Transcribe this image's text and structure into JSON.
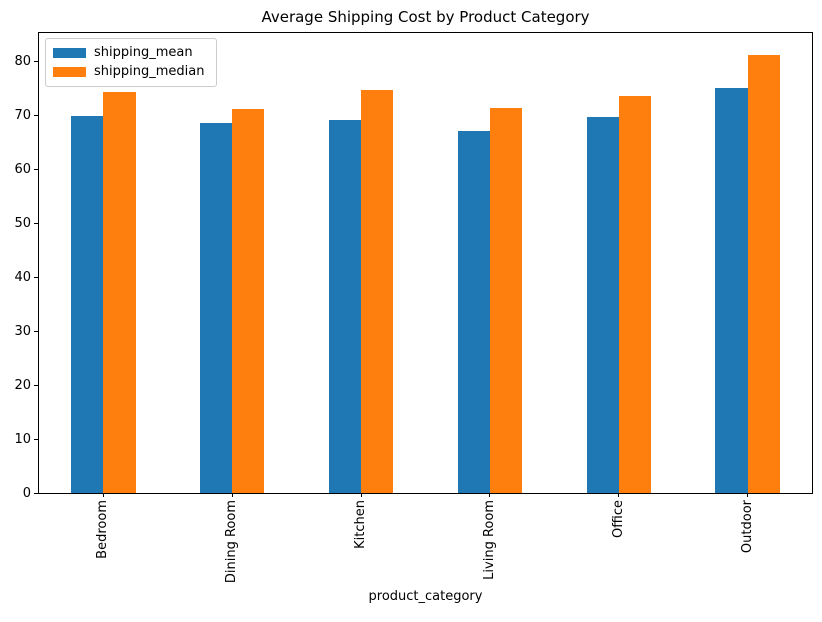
{
  "figure": {
    "background": "#ffffff",
    "spine_color": "#000000"
  },
  "chart_data": {
    "type": "bar",
    "title": "Average Shipping Cost by Product Category",
    "xlabel": "product_category",
    "ylabel": "",
    "categories": [
      "Bedroom",
      "Dining Room",
      "Kitchen",
      "Living Room",
      "Office",
      "Outdoor"
    ],
    "series": [
      {
        "name": "shipping_mean",
        "color": "#1f77b4",
        "values": [
          69.8,
          68.5,
          69.0,
          67.0,
          69.6,
          75.1
        ]
      },
      {
        "name": "shipping_median",
        "color": "#ff7f0e",
        "values": [
          74.2,
          71.1,
          74.7,
          71.3,
          73.5,
          81.1
        ]
      }
    ],
    "ylim": [
      0,
      85.2
    ],
    "yticks": [
      0,
      10,
      20,
      30,
      40,
      50,
      60,
      70,
      80
    ],
    "grid": false,
    "legend_position": "upper left",
    "bar_group_width_fraction": 0.5,
    "xtick_label_rotation": 90
  }
}
